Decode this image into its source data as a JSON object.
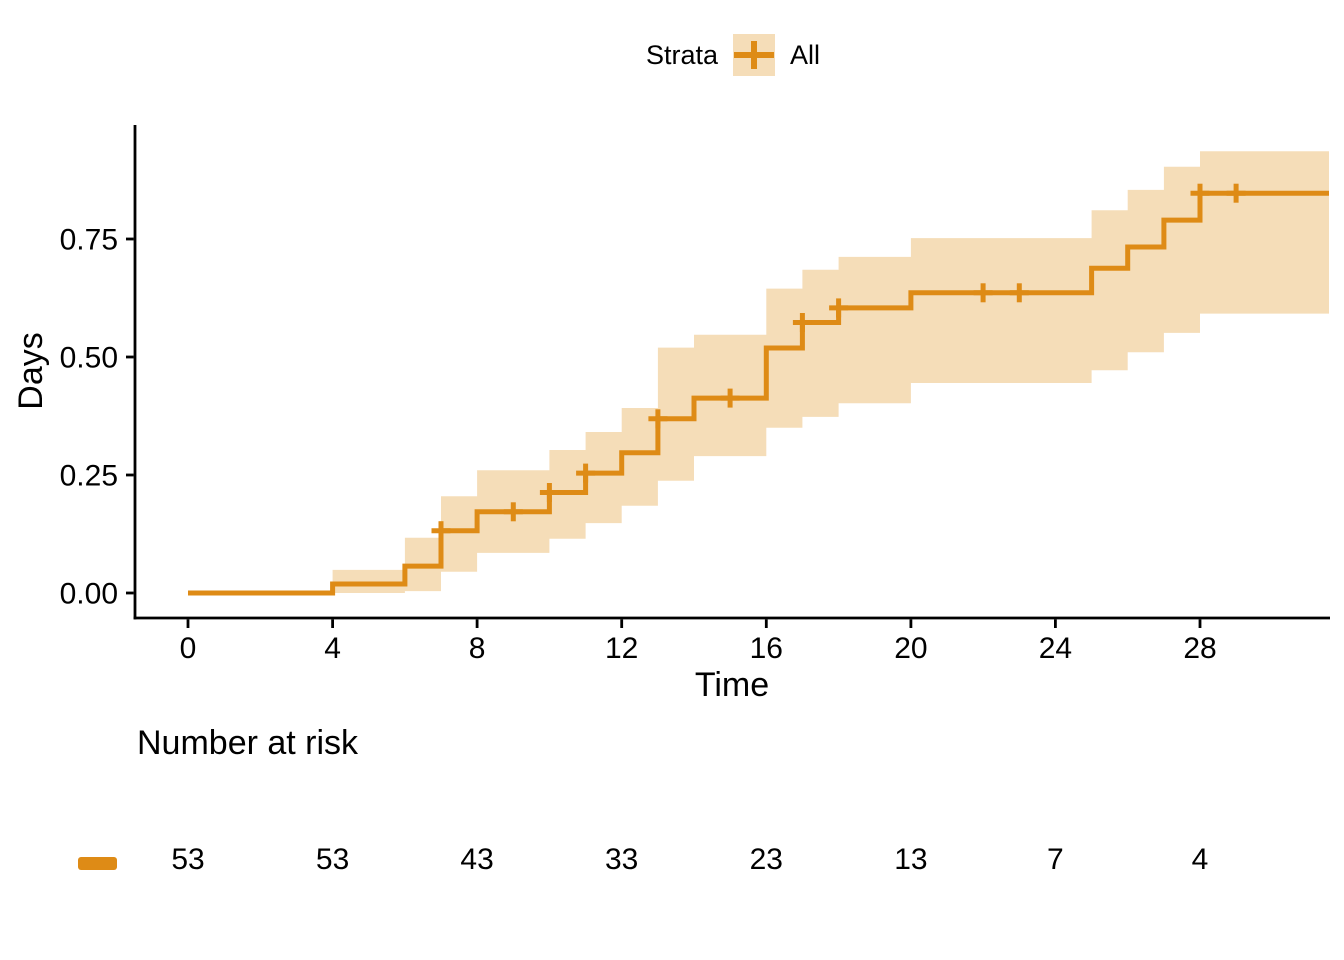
{
  "chart_data": {
    "type": "line",
    "subtype": "kaplan-meier-step-cumulative-incidence",
    "title": "",
    "xlabel": "Time",
    "ylabel": "Days",
    "xlim": [
      -1.5,
      31.6
    ],
    "ylim": [
      0,
      0.99
    ],
    "grid": false,
    "x_ticks": [
      0,
      4,
      8,
      12,
      16,
      20,
      24,
      28
    ],
    "x_tick_labels": [
      "0",
      "4",
      "8",
      "12",
      "16",
      "20",
      "24",
      "28"
    ],
    "y_ticks": [
      0,
      0.25,
      0.5,
      0.75
    ],
    "y_tick_labels": [
      "0.00",
      "0.25",
      "0.50",
      "0.75"
    ],
    "legend": {
      "title": "Strata",
      "position": "top",
      "entries": [
        "All"
      ]
    },
    "series": [
      {
        "name": "All",
        "color": "#DE8B16",
        "band_color": "#F5DDB8",
        "end_time": 31.57,
        "steps": [
          [
            0,
            0.0
          ],
          [
            4,
            0.019
          ],
          [
            6,
            0.057
          ],
          [
            7,
            0.132
          ],
          [
            8,
            0.172
          ],
          [
            10,
            0.213
          ],
          [
            11,
            0.254
          ],
          [
            12,
            0.297
          ],
          [
            13,
            0.369
          ],
          [
            14,
            0.413
          ],
          [
            16,
            0.519
          ],
          [
            17,
            0.573
          ],
          [
            18,
            0.604
          ],
          [
            20,
            0.636
          ],
          [
            25,
            0.688
          ],
          [
            26,
            0.733
          ],
          [
            27,
            0.79
          ],
          [
            28,
            0.847
          ]
        ],
        "censor_marks": [
          [
            7,
            0.132
          ],
          [
            9,
            0.172
          ],
          [
            10,
            0.213
          ],
          [
            11,
            0.254
          ],
          [
            13,
            0.369
          ],
          [
            15,
            0.413
          ],
          [
            17,
            0.573
          ],
          [
            18,
            0.604
          ],
          [
            22,
            0.636
          ],
          [
            23,
            0.636
          ],
          [
            28,
            0.847
          ],
          [
            29,
            0.847
          ]
        ],
        "conf_band": [
          {
            "t0": 4,
            "t1": 6,
            "lo": 0.0,
            "hi": 0.049
          },
          {
            "t0": 6,
            "t1": 7,
            "lo": 0.004,
            "hi": 0.117
          },
          {
            "t0": 7,
            "t1": 8,
            "lo": 0.045,
            "hi": 0.205
          },
          {
            "t0": 8,
            "t1": 10,
            "lo": 0.085,
            "hi": 0.26
          },
          {
            "t0": 10,
            "t1": 11,
            "lo": 0.115,
            "hi": 0.303
          },
          {
            "t0": 11,
            "t1": 12,
            "lo": 0.148,
            "hi": 0.341
          },
          {
            "t0": 12,
            "t1": 13,
            "lo": 0.185,
            "hi": 0.392
          },
          {
            "t0": 13,
            "t1": 14,
            "lo": 0.238,
            "hi": 0.52
          },
          {
            "t0": 14,
            "t1": 16,
            "lo": 0.29,
            "hi": 0.547
          },
          {
            "t0": 16,
            "t1": 17,
            "lo": 0.35,
            "hi": 0.645
          },
          {
            "t0": 17,
            "t1": 18,
            "lo": 0.373,
            "hi": 0.685
          },
          {
            "t0": 18,
            "t1": 20,
            "lo": 0.402,
            "hi": 0.712
          },
          {
            "t0": 20,
            "t1": 25,
            "lo": 0.445,
            "hi": 0.752
          },
          {
            "t0": 25,
            "t1": 26,
            "lo": 0.472,
            "hi": 0.811
          },
          {
            "t0": 26,
            "t1": 27,
            "lo": 0.51,
            "hi": 0.854
          },
          {
            "t0": 27,
            "t1": 28,
            "lo": 0.551,
            "hi": 0.903
          },
          {
            "t0": 28,
            "t1": 31.57,
            "lo": 0.592,
            "hi": 0.936
          }
        ]
      }
    ],
    "risk_table": {
      "title": "Number at risk",
      "times": [
        0,
        4,
        8,
        12,
        16,
        20,
        24,
        28
      ],
      "counts": [
        "53",
        "53",
        "43",
        "33",
        "23",
        "13",
        "7",
        "4"
      ]
    },
    "colors": {
      "axis": "#000000",
      "tick_text": "#000000"
    }
  }
}
